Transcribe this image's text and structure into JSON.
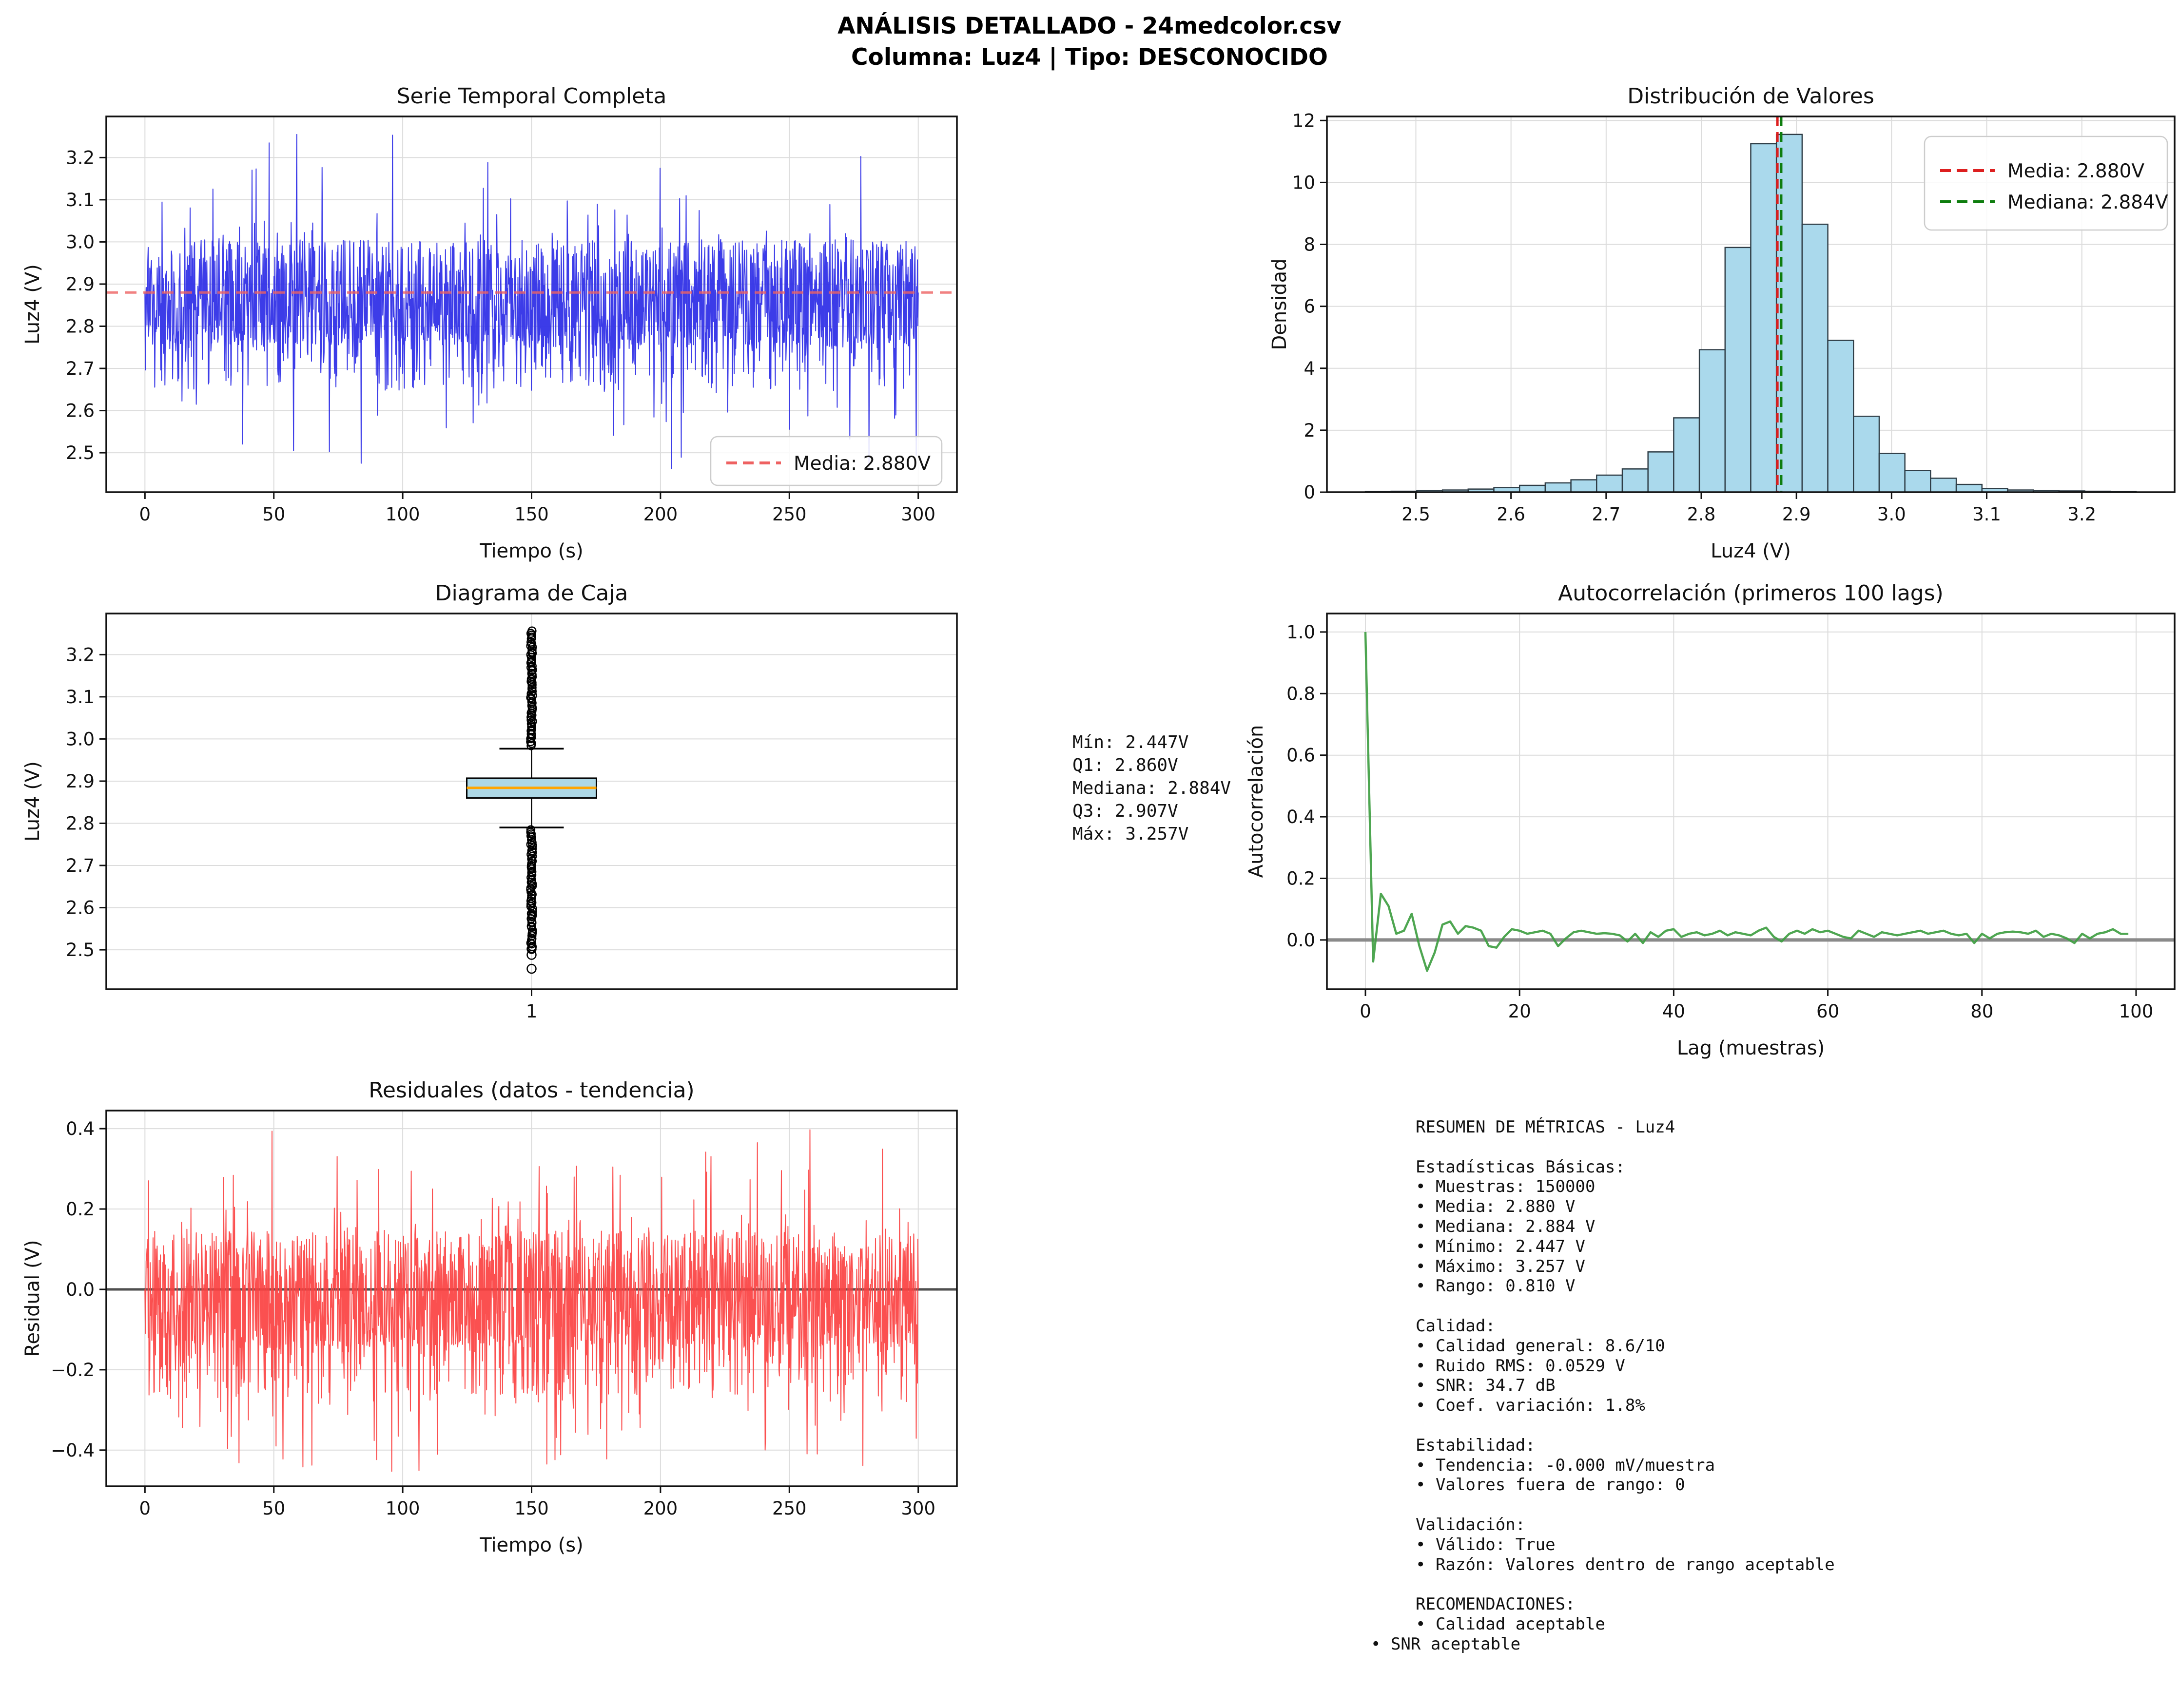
{
  "suptitle": {
    "line1": "ANÁLISIS DETALLADO - 24medcolor.csv",
    "line2": "Columna: Luz4 | Tipo: DESCONOCIDO"
  },
  "stats_annotation": {
    "lines": [
      "Mín: 2.447V",
      "Q1: 2.860V",
      "Mediana: 2.884V",
      "Q3: 2.907V",
      "Máx: 3.257V"
    ]
  },
  "summary_panel": {
    "lines": [
      {
        "text": "RESUMEN DE MÉTRICAS - Luz4",
        "indent": 1
      },
      {
        "text": "",
        "indent": 1
      },
      {
        "text": "Estadísticas Básicas:",
        "indent": 1
      },
      {
        "text": "• Muestras: 150000",
        "indent": 1
      },
      {
        "text": "• Media: 2.880 V",
        "indent": 1
      },
      {
        "text": "• Mediana: 2.884 V",
        "indent": 1
      },
      {
        "text": "• Mínimo: 2.447 V",
        "indent": 1
      },
      {
        "text": "• Máximo: 3.257 V",
        "indent": 1
      },
      {
        "text": "• Rango: 0.810 V",
        "indent": 1
      },
      {
        "text": "",
        "indent": 1
      },
      {
        "text": "Calidad:",
        "indent": 1
      },
      {
        "text": "• Calidad general: 8.6/10",
        "indent": 1
      },
      {
        "text": "• Ruido RMS: 0.0529 V",
        "indent": 1
      },
      {
        "text": "• SNR: 34.7 dB",
        "indent": 1
      },
      {
        "text": "• Coef. variación: 1.8%",
        "indent": 1
      },
      {
        "text": "",
        "indent": 1
      },
      {
        "text": "Estabilidad:",
        "indent": 1
      },
      {
        "text": "• Tendencia: -0.000 mV/muestra",
        "indent": 1
      },
      {
        "text": "• Valores fuera de rango: 0",
        "indent": 1
      },
      {
        "text": "",
        "indent": 1
      },
      {
        "text": "Validación:",
        "indent": 1
      },
      {
        "text": "• Válido: True",
        "indent": 1
      },
      {
        "text": "• Razón: Valores dentro de rango aceptable",
        "indent": 1
      },
      {
        "text": "",
        "indent": 1
      },
      {
        "text": "RECOMENDACIONES:",
        "indent": 1
      },
      {
        "text": "• Calidad aceptable",
        "indent": 1
      },
      {
        "text": "• SNR aceptable",
        "indent": 0
      }
    ]
  },
  "colors": {
    "background": "#ffffff",
    "grid": "#dcdcdc",
    "spine": "#111111",
    "text": "#111111",
    "legend_border": "#cccccc"
  },
  "chart_data": [
    {
      "id": "serie-temporal",
      "type": "line",
      "title": "Serie Temporal Completa",
      "xlabel": "Tiempo (s)",
      "ylabel": "Luz4 (V)",
      "xlim": [
        -15,
        315
      ],
      "ylim": [
        2.4065,
        3.2975
      ],
      "xticks": {
        "values": [
          0,
          50,
          100,
          150,
          200,
          250,
          300
        ],
        "labels": [
          "0",
          "50",
          "100",
          "150",
          "200",
          "250",
          "300"
        ]
      },
      "yticks": {
        "values": [
          2.5,
          2.6,
          2.7,
          2.8,
          2.9,
          3.0,
          3.1,
          3.2
        ],
        "labels": [
          "2.5",
          "2.6",
          "2.7",
          "2.8",
          "2.9",
          "3.0",
          "3.1",
          "3.2"
        ]
      },
      "line_color": "#2b2be6",
      "mean_line": {
        "value": 2.88,
        "label": "Media: 2.880V",
        "color": "#ee6161"
      },
      "signal": {
        "seed": 1337,
        "n": 1900,
        "t_min": 0,
        "t_max": 300,
        "mean": 2.88,
        "core": 0.125,
        "p_core": 0.75,
        "low_band": [
          -0.23,
          -0.1
        ],
        "p_low": 0.18,
        "up_spike": [
          0.1,
          0.377
        ],
        "p_up": 0.045,
        "down_spike": [
          -0.433,
          -0.23
        ],
        "clip": [
          2.447,
          3.257
        ]
      }
    },
    {
      "id": "histograma",
      "type": "bar",
      "title": "Distribución de Valores",
      "xlabel": "Luz4 (V)",
      "ylabel": "Densidad",
      "xlim": [
        2.4065,
        3.2975
      ],
      "ylim": [
        0,
        12.13
      ],
      "xticks": {
        "values": [
          2.5,
          2.6,
          2.7,
          2.8,
          2.9,
          3.0,
          3.1,
          3.2
        ],
        "labels": [
          "2.5",
          "2.6",
          "2.7",
          "2.8",
          "2.9",
          "3.0",
          "3.1",
          "3.2"
        ]
      },
      "yticks": {
        "values": [
          0,
          2,
          4,
          6,
          8,
          10,
          12
        ],
        "labels": [
          "0",
          "2",
          "4",
          "6",
          "8",
          "10",
          "12"
        ]
      },
      "bins": {
        "start": 2.447,
        "width": 0.027,
        "heights": [
          0.02,
          0.03,
          0.05,
          0.07,
          0.1,
          0.15,
          0.22,
          0.3,
          0.4,
          0.55,
          0.75,
          1.3,
          2.4,
          4.6,
          7.9,
          11.25,
          11.55,
          8.65,
          4.9,
          2.45,
          1.25,
          0.7,
          0.45,
          0.25,
          0.12,
          0.07,
          0.05,
          0.04,
          0.03,
          0.02
        ]
      },
      "bar_fill": "#aad9ec",
      "bar_edge": "#2f3d46",
      "vlines": [
        {
          "value": 2.88,
          "label": "Media: 2.880V",
          "color": "#dd1f1f"
        },
        {
          "value": 2.884,
          "label": "Mediana: 2.884V",
          "color": "#0e7d0e"
        }
      ]
    },
    {
      "id": "diagrama-caja",
      "type": "box",
      "title": "Diagrama de Caja",
      "xlabel": "",
      "ylabel": "Luz4 (V)",
      "xlim": [
        0,
        2
      ],
      "ylim": [
        2.4065,
        3.2975
      ],
      "xticks": {
        "values": [
          1
        ],
        "labels": [
          "1"
        ]
      },
      "yticks": {
        "values": [
          2.5,
          2.6,
          2.7,
          2.8,
          2.9,
          3.0,
          3.1,
          3.2
        ],
        "labels": [
          "2.5",
          "2.6",
          "2.7",
          "2.8",
          "2.9",
          "3.0",
          "3.1",
          "3.2"
        ]
      },
      "box_stats": {
        "min": 2.447,
        "q1": 2.86,
        "median": 2.884,
        "q3": 2.907,
        "whisker_low": 2.79,
        "whisker_high": 2.977,
        "max": 3.257
      },
      "outliers": {
        "upper": {
          "from": 2.985,
          "to": 3.255,
          "count": 58
        },
        "lower": {
          "from": 2.503,
          "to": 2.785,
          "count": 58
        },
        "isolated": [
          2.502,
          2.488,
          2.455
        ]
      },
      "box_fill": "#add8e6",
      "median_color": "#ffa500",
      "outlier_color": "#000000"
    },
    {
      "id": "autocorrelacion",
      "type": "line",
      "title": "Autocorrelación (primeros 100 lags)",
      "xlabel": "Lag (muestras)",
      "ylabel": "Autocorrelación",
      "xlim": [
        -5,
        105
      ],
      "ylim": [
        -0.16,
        1.06
      ],
      "xticks": {
        "values": [
          0,
          20,
          40,
          60,
          80,
          100
        ],
        "labels": [
          "0",
          "20",
          "40",
          "60",
          "80",
          "100"
        ]
      },
      "yticks": {
        "values": [
          0.0,
          0.2,
          0.4,
          0.6,
          0.8,
          1.0
        ],
        "labels": [
          "0.0",
          "0.2",
          "0.4",
          "0.6",
          "0.8",
          "1.0"
        ]
      },
      "line_color": "#3f9e42",
      "zero_line_color": "#8a8a8a",
      "values": [
        1.0,
        -0.07,
        0.15,
        0.11,
        0.02,
        0.03,
        0.085,
        -0.02,
        -0.1,
        -0.04,
        0.05,
        0.06,
        0.02,
        0.045,
        0.04,
        0.03,
        -0.02,
        -0.025,
        0.01,
        0.035,
        0.03,
        0.02,
        0.025,
        0.03,
        0.02,
        -0.02,
        0.005,
        0.025,
        0.03,
        0.025,
        0.02,
        0.022,
        0.02,
        0.015,
        -0.005,
        0.02,
        -0.01,
        0.025,
        0.01,
        0.03,
        0.035,
        0.01,
        0.02,
        0.025,
        0.015,
        0.02,
        0.03,
        0.015,
        0.025,
        0.02,
        0.015,
        0.03,
        0.04,
        0.01,
        -0.005,
        0.02,
        0.03,
        0.02,
        0.035,
        0.025,
        0.03,
        0.02,
        0.01,
        0.005,
        0.03,
        0.02,
        0.01,
        0.025,
        0.02,
        0.015,
        0.02,
        0.025,
        0.03,
        0.02,
        0.025,
        0.03,
        0.02,
        0.015,
        0.02,
        -0.01,
        0.02,
        0.005,
        0.02,
        0.025,
        0.027,
        0.025,
        0.02,
        0.03,
        0.01,
        0.02,
        0.015,
        0.005,
        -0.01,
        0.02,
        0.005,
        0.02,
        0.025,
        0.035,
        0.02,
        0.02
      ]
    },
    {
      "id": "residuales",
      "type": "line",
      "title": "Residuales (datos - tendencia)",
      "xlabel": "Tiempo (s)",
      "ylabel": "Residual (V)",
      "xlim": [
        -15,
        315
      ],
      "ylim": [
        -0.49,
        0.445
      ],
      "xticks": {
        "values": [
          0,
          50,
          100,
          150,
          200,
          250,
          300
        ],
        "labels": [
          "0",
          "50",
          "100",
          "150",
          "200",
          "250",
          "300"
        ]
      },
      "yticks": {
        "values": [
          -0.4,
          -0.2,
          0.0,
          0.2,
          0.4
        ],
        "labels": [
          "−0.4",
          "−0.2",
          "0.0",
          "0.2",
          "0.4"
        ]
      },
      "line_color": "#fb4141",
      "zero_line_color": "#4f4f4f",
      "signal": {
        "seed": 777,
        "n": 1900,
        "t_min": 0,
        "t_max": 300,
        "mean": 0,
        "core": 0.145,
        "p_core": 0.74,
        "low_band": [
          -0.26,
          -0.12
        ],
        "p_low": 0.16,
        "up_spike": [
          0.12,
          0.4
        ],
        "p_up": 0.05,
        "down_spike": [
          -0.455,
          -0.26
        ],
        "clip": [
          -0.455,
          0.4
        ]
      }
    }
  ]
}
